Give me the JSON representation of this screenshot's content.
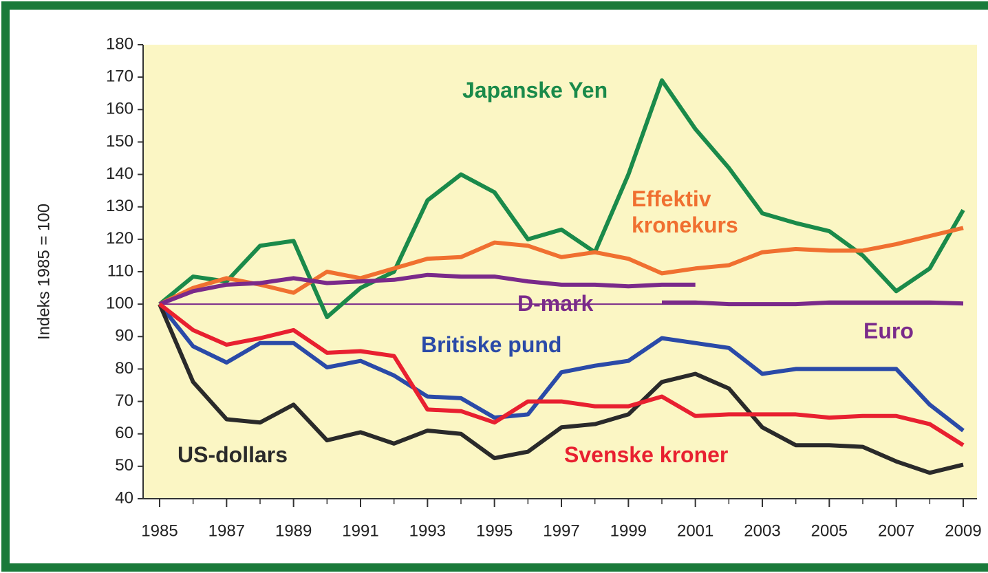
{
  "chart_data": {
    "type": "line",
    "y_axis_label": "Indeks 1985 = 100",
    "x": [
      1985,
      1986,
      1987,
      1988,
      1989,
      1990,
      1991,
      1992,
      1993,
      1994,
      1995,
      1996,
      1997,
      1998,
      1999,
      2000,
      2001,
      2002,
      2003,
      2004,
      2005,
      2006,
      2007,
      2008,
      2009
    ],
    "xlim": [
      1985,
      2009
    ],
    "xticks": [
      1985,
      1987,
      1989,
      1991,
      1993,
      1995,
      1997,
      1999,
      2001,
      2003,
      2005,
      2007,
      2009
    ],
    "ylim": [
      40,
      180
    ],
    "yticks": [
      40,
      50,
      60,
      70,
      80,
      90,
      100,
      110,
      120,
      130,
      140,
      150,
      160,
      170,
      180
    ],
    "reference_line": 100,
    "reference_color": "#7a2a8a",
    "series": [
      {
        "name": "Japanske Yen",
        "color": "#1a8a4a",
        "values": [
          100,
          108.5,
          107,
          118,
          119.5,
          96,
          105,
          110,
          132,
          140,
          134.5,
          120,
          123,
          116,
          140,
          169,
          154,
          142,
          128,
          125,
          122.5,
          115,
          104,
          111,
          129
        ]
      },
      {
        "name": "Effektiv kronekurs",
        "color": "#f07030",
        "values": [
          100,
          105,
          108,
          106,
          103.5,
          110,
          108,
          111,
          114,
          114.5,
          119,
          118,
          114.5,
          116,
          114,
          109.5,
          111,
          112,
          116,
          117,
          116.5,
          116.5,
          118.5,
          121,
          123.5
        ]
      },
      {
        "name": "D-mark",
        "color": "#7a2a8a",
        "values": [
          100,
          104,
          106,
          106.5,
          108,
          106.5,
          107,
          107.5,
          109,
          108.5,
          108.5,
          107,
          106,
          106,
          105.5,
          106,
          106,
          null,
          null,
          null,
          null,
          null,
          null,
          null,
          null
        ]
      },
      {
        "name": "Euro",
        "color": "#7a2a8a",
        "values": [
          null,
          null,
          null,
          null,
          null,
          null,
          null,
          null,
          null,
          null,
          null,
          null,
          null,
          null,
          null,
          100.5,
          100.5,
          100,
          100,
          100,
          100.5,
          100.5,
          100.5,
          100.5,
          100.2
        ]
      },
      {
        "name": "Britiske pund",
        "color": "#2a4aa8",
        "values": [
          100,
          87,
          82,
          88,
          88,
          80.5,
          82.5,
          78,
          71.5,
          71,
          65,
          66,
          79,
          81,
          82.5,
          89.5,
          88,
          86.5,
          78.5,
          80,
          80,
          80,
          80,
          69,
          61
        ]
      },
      {
        "name": "US-dollars",
        "color": "#2a2a2a",
        "values": [
          100,
          76,
          64.5,
          63.5,
          69,
          58,
          60.5,
          57,
          61,
          60,
          52.5,
          54.5,
          62,
          63,
          66,
          76,
          78.5,
          74,
          62,
          56.5,
          56.5,
          56,
          51.5,
          48,
          50.5
        ]
      },
      {
        "name": "Svenske kroner",
        "color": "#e82030",
        "values": [
          100,
          92,
          87.5,
          89.5,
          92,
          85,
          85.5,
          84,
          67.5,
          67,
          63.5,
          70,
          70,
          68.5,
          68.5,
          71.5,
          65.5,
          66,
          66,
          66,
          65,
          65.5,
          65.5,
          63,
          56.5
        ]
      }
    ]
  }
}
